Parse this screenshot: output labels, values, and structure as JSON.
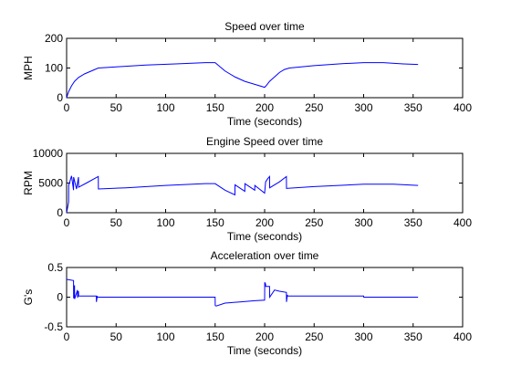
{
  "chart_data": [
    {
      "type": "line",
      "title": "Speed over time",
      "xlabel": "Time (seconds)",
      "ylabel": "MPH",
      "xlim": [
        0,
        400
      ],
      "ylim": [
        0,
        200
      ],
      "xticks": [
        0,
        50,
        100,
        150,
        200,
        250,
        300,
        350,
        400
      ],
      "yticks": [
        0,
        100,
        200
      ],
      "grid": false,
      "color": "#0000ff",
      "series": [
        {
          "x": [
            0,
            2,
            5,
            8,
            12,
            18,
            25,
            32,
            50,
            80,
            110,
            140,
            150,
            160,
            170,
            180,
            190,
            200,
            202,
            205,
            210,
            215,
            220,
            225,
            250,
            280,
            300,
            320,
            340,
            355
          ],
          "y": [
            0,
            20,
            40,
            55,
            68,
            80,
            90,
            100,
            104,
            110,
            114,
            118,
            118,
            90,
            70,
            55,
            45,
            35,
            42,
            55,
            70,
            85,
            95,
            100,
            108,
            115,
            118,
            118,
            114,
            112
          ]
        }
      ]
    },
    {
      "type": "line",
      "title": "Engine Speed over time",
      "xlabel": "Time (seconds)",
      "ylabel": "RPM",
      "xlim": [
        0,
        400
      ],
      "ylim": [
        0,
        10000
      ],
      "xticks": [
        0,
        50,
        100,
        150,
        200,
        250,
        300,
        350,
        400
      ],
      "yticks": [
        0,
        5000,
        10000
      ],
      "grid": false,
      "color": "#0000ff",
      "series": [
        {
          "x": [
            0,
            2,
            2.1,
            5,
            7,
            7.1,
            10,
            12,
            12.1,
            20,
            32,
            32.1,
            60,
            100,
            140,
            150,
            160,
            170,
            170.1,
            180,
            180.1,
            190,
            190.1,
            200,
            201,
            203,
            205,
            205.1,
            215,
            222,
            222.1,
            250,
            300,
            330,
            355
          ],
          "y": [
            0,
            1800,
            4600,
            6200,
            3800,
            6000,
            4000,
            6000,
            4300,
            5000,
            6100,
            4000,
            4200,
            4600,
            4900,
            4900,
            3800,
            3000,
            4700,
            3600,
            4900,
            3800,
            4600,
            3300,
            5200,
            5700,
            6100,
            4200,
            5200,
            6100,
            4100,
            4400,
            4800,
            4800,
            4600
          ]
        }
      ]
    },
    {
      "type": "line",
      "title": "Acceleration over time",
      "xlabel": "Time (seconds)",
      "ylabel": "G's",
      "xlim": [
        0,
        400
      ],
      "ylim": [
        -0.5,
        0.5
      ],
      "xticks": [
        0,
        50,
        100,
        150,
        200,
        250,
        300,
        350,
        400
      ],
      "yticks": [
        -0.5,
        0,
        0.5
      ],
      "grid": false,
      "color": "#0000ff",
      "series": [
        {
          "x": [
            0,
            7,
            7.1,
            8,
            8.1,
            11,
            11.1,
            12,
            12.1,
            30,
            30.1,
            31,
            31.1,
            150,
            150.1,
            151,
            160,
            175,
            190,
            200,
            200.1,
            201,
            201.1,
            205,
            205.1,
            210,
            215,
            222,
            222.1,
            223,
            223.1,
            300,
            300.1,
            355
          ],
          "y": [
            0.3,
            0.28,
            -0.02,
            0.2,
            -0.03,
            0.12,
            -0.01,
            0.1,
            0.02,
            0.02,
            -0.08,
            0.02,
            0.0,
            0.0,
            -0.14,
            -0.15,
            -0.1,
            -0.08,
            -0.06,
            -0.05,
            0.25,
            0.22,
            0.18,
            0.18,
            0.0,
            0.12,
            0.1,
            0.08,
            -0.08,
            0.04,
            0.02,
            0.02,
            0.0,
            0.0
          ]
        }
      ]
    }
  ]
}
